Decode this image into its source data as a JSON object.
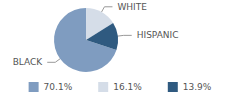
{
  "chart_data": {
    "type": "pie",
    "categories": [
      "BLACK",
      "WHITE",
      "HISPANIC"
    ],
    "values": [
      70.1,
      16.1,
      13.9
    ],
    "value_labels": [
      "70.1%",
      "16.1%",
      "13.9%"
    ],
    "colors": [
      "#7f9cc0",
      "#d5dde8",
      "#2f5a80"
    ],
    "legend": "bottom"
  }
}
